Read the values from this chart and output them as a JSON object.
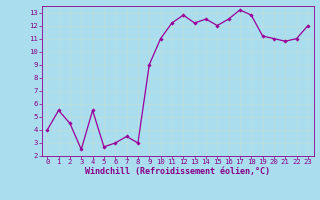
{
  "x": [
    0,
    1,
    2,
    3,
    4,
    5,
    6,
    7,
    8,
    9,
    10,
    11,
    12,
    13,
    14,
    15,
    16,
    17,
    18,
    19,
    20,
    21,
    22,
    23
  ],
  "y": [
    4.0,
    5.5,
    4.5,
    2.5,
    5.5,
    2.7,
    3.0,
    3.5,
    3.0,
    9.0,
    11.0,
    12.2,
    12.8,
    12.2,
    12.5,
    12.0,
    12.5,
    13.2,
    12.8,
    11.2,
    11.0,
    10.8,
    11.0,
    12.0
  ],
  "line_color": "#990099",
  "marker_color": "#990099",
  "bg_color": "#aaddee",
  "grid_color": "#bbdddd",
  "xlim": [
    -0.5,
    23.5
  ],
  "ylim": [
    2,
    13.5
  ],
  "yticks": [
    2,
    3,
    4,
    5,
    6,
    7,
    8,
    9,
    10,
    11,
    12,
    13
  ],
  "xticks": [
    0,
    1,
    2,
    3,
    4,
    5,
    6,
    7,
    8,
    9,
    10,
    11,
    12,
    13,
    14,
    15,
    16,
    17,
    18,
    19,
    20,
    21,
    22,
    23
  ],
  "tick_label_fontsize": 5.2,
  "xlabel_fontsize": 6.0,
  "axis_label_color": "#880088",
  "xlabel": "Windchill (Refroidissement éolien,°C)"
}
